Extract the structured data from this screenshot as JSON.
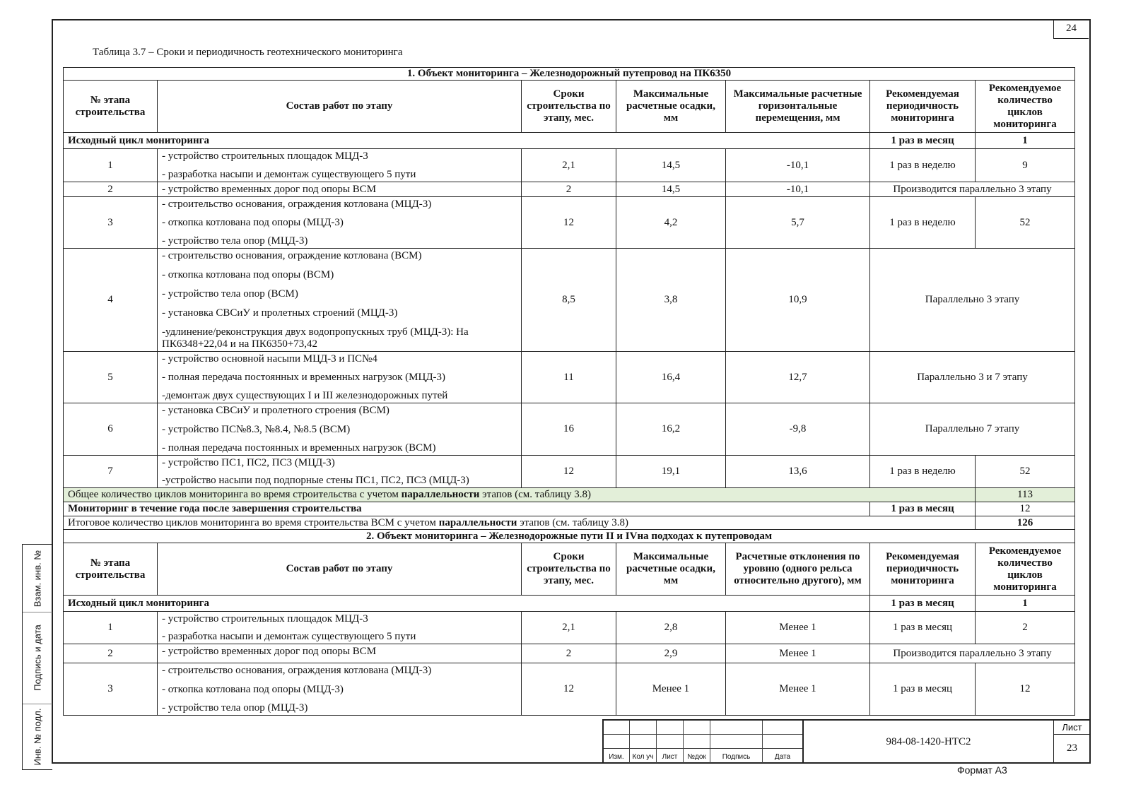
{
  "page_number": "24",
  "caption": "Таблица 3.7 – Сроки и периодичность геотехнического мониторинга",
  "sections": [
    {
      "title": "1. Объект мониторинга – Железнодорожный путепровод на ПК6350",
      "headers": [
        "№ этапа строительства",
        "Состав работ по этапу",
        "Сроки строительства по этапу, мес.",
        "Максимальные расчетные осадки, мм",
        "Максимальные расчетные горизонтальные перемещения, мм",
        "Рекомендуемая периодичность мониторинга",
        "Рекомендуемое количество циклов мониторинга"
      ],
      "initial": {
        "label": "Исходный цикл мониторинга",
        "period": "1 раз в месяц",
        "count": "1"
      },
      "rows": [
        {
          "stage": "1",
          "works": [
            "- устройство строительных площадок МЦД-3",
            "- разработка насыпи и демонтаж существующего 5 пути"
          ],
          "months": "2,1",
          "settle": "14,5",
          "disp": "-10,1",
          "period": "1 раз в неделю",
          "count": "9"
        },
        {
          "stage": "2",
          "works": [
            "- устройство временных дорог под опоры ВСМ"
          ],
          "months": "2",
          "settle": "14,5",
          "disp": "-10,1",
          "merged": "Производится параллельно 3 этапу"
        },
        {
          "stage": "3",
          "works": [
            "- строительство основания, ограждения котлована (МЦД-3)",
            "- откопка котлована под опоры (МЦД-3)",
            "- устройство тела опор (МЦД-3)"
          ],
          "months": "12",
          "settle": "4,2",
          "disp": "5,7",
          "period": "1 раз в неделю",
          "count": "52"
        },
        {
          "stage": "4",
          "works": [
            "- строительство основания, ограждение котлована (ВСМ)",
            "- откопка котлована под опоры (ВСМ)",
            "- устройство тела опор (ВСМ)",
            "- установка СВСиУ и пролетных строений (МЦД-3)",
            "-удлинение/реконструкция двух водопропускных труб (МЦД-3): На ПК6348+22,04 и на ПК6350+73,42"
          ],
          "months": "8,5",
          "settle": "3,8",
          "disp": "10,9",
          "merged": "Параллельно 3 этапу"
        },
        {
          "stage": "5",
          "works": [
            "- устройство основной насыпи МЦД-3 и ПС№4",
            "- полная передача постоянных и временных нагрузок (МЦД-3)",
            "-демонтаж двух существующих I и III железнодорожных путей"
          ],
          "months": "11",
          "settle": "16,4",
          "disp": "12,7",
          "merged": "Параллельно 3 и 7 этапу"
        },
        {
          "stage": "6",
          "works": [
            "- установка СВСиУ и пролетного строения (ВСМ)",
            "- устройство ПС№8.3, №8.4, №8.5 (ВСМ)",
            "- полная передача постоянных и временных нагрузок (ВСМ)"
          ],
          "months": "16",
          "settle": "16,2",
          "disp": "-9,8",
          "merged": "Параллельно 7 этапу"
        },
        {
          "stage": "7",
          "works": [
            "- устройство ПС1, ПС2, ПС3 (МЦД-3)",
            "-устройство насыпи под подпорные стены ПС1, ПС2, ПС3 (МЦД-3)"
          ],
          "months": "12",
          "settle": "19,1",
          "disp": "13,6",
          "period": "1 раз в неделю",
          "count": "52"
        }
      ],
      "total": {
        "pre": "Общее количество циклов мониторинга во время строительства с учетом ",
        "bold": "параллельности",
        "post": " этапов (см. таблицу 3.8)",
        "value": "113",
        "highlight": "#e3efd9"
      },
      "post": {
        "label": "Мониторинг в течение года после завершения строительства",
        "period": "1 раз в месяц",
        "count": "12"
      },
      "final": {
        "pre": "Итоговое количество циклов мониторинга во время строительства ВСМ с учетом ",
        "bold": "параллельности",
        "post": " этапов (см. таблицу 3.8)",
        "value": "126"
      }
    },
    {
      "title": "2. Объект мониторинга – Железнодорожные пути II и IVна подходах к путепроводам",
      "headers": [
        "№ этапа строительства",
        "Состав работ по этапу",
        "Сроки строительства по этапу, мес.",
        "Максимальные расчетные осадки, мм",
        "Расчетные отклонения по уровню (одного рельса относительно другого), мм",
        "Рекомендуемая периодичность мониторинга",
        "Рекомендуемое количество циклов мониторинга"
      ],
      "initial": {
        "label": "Исходный цикл мониторинга",
        "period": "1 раз в месяц",
        "count": "1"
      },
      "rows": [
        {
          "stage": "1",
          "works": [
            "- устройство строительных площадок МЦД-3",
            "- разработка насыпи и демонтаж существующего 5 пути"
          ],
          "months": "2,1",
          "settle": "2,8",
          "disp": "Менее 1",
          "period": "1 раз в месяц",
          "count": "2"
        },
        {
          "stage": "2",
          "works": [
            "- устройство временных дорог под опоры ВСМ"
          ],
          "months": "2",
          "settle": "2,9",
          "disp": "Менее 1",
          "merged": "Производится параллельно 3 этапу"
        },
        {
          "stage": "3",
          "works": [
            "- строительство основания, ограждения котлована (МЦД-3)",
            "- откопка котлована под опоры (МЦД-3)",
            "- устройство тела опор (МЦД-3)"
          ],
          "months": "12",
          "settle": "Менее 1",
          "disp": "Менее 1",
          "period": "1 раз в месяц",
          "count": "12"
        }
      ]
    }
  ],
  "side_strip": [
    "Взам. инв. №",
    "Подпись и дата",
    "Инв. № подл."
  ],
  "stamp": {
    "cols": [
      "Изм.",
      "Кол уч",
      "Лист",
      "№док",
      "Подпись",
      "Дата"
    ],
    "doc_code": "984-08-1420-НТС2",
    "sheet_label": "Лист",
    "sheet_number": "23"
  },
  "format": "Формат А3"
}
